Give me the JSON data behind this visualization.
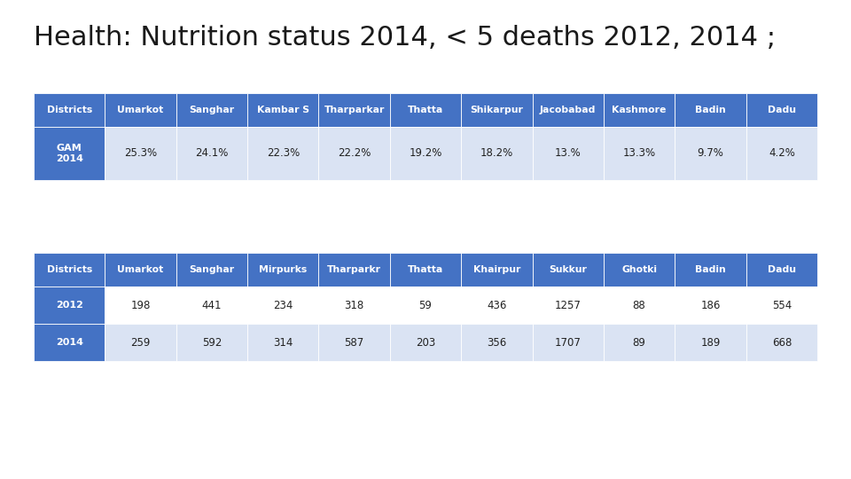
{
  "title": "Health: Nutrition status 2014, < 5 deaths 2012, 2014 ;",
  "title_fontsize": 22,
  "background_color": "#ffffff",
  "header_color": "#4472C4",
  "header_text_color": "#ffffff",
  "row_color_light": "#DAE3F3",
  "row_color_white": "#ffffff",
  "border_color": "#4472C4",
  "data_text_color": "#222222",
  "label_cell_color": "#4472C4",
  "label_text_color": "#ffffff",
  "table1_headers": [
    "Districts",
    "Umarkot",
    "Sanghar",
    "Kambar S",
    "Tharparkar",
    "Thatta",
    "Shikarpur",
    "Jacobabad",
    "Kashmore",
    "Badin",
    "Dadu"
  ],
  "table1_row_label": "GAM\n2014",
  "table1_data": [
    "25.3%",
    "24.1%",
    "22.3%",
    "22.2%",
    "19.2%",
    "18.2%",
    "13.%",
    "13.3%",
    "9.7%",
    "4.2%"
  ],
  "table2_headers": [
    "Districts",
    "Umarkot",
    "Sanghar",
    "Mirpurks",
    "Tharparkr",
    "Thatta",
    "Khairpur",
    "Sukkur",
    "Ghotki",
    "Badin",
    "Dadu"
  ],
  "table2_row1_label": "2012",
  "table2_row2_label": "2014",
  "table2_row1_data": [
    "198",
    "441",
    "234",
    "318",
    "59",
    "436",
    "1257",
    "88",
    "186",
    "554"
  ],
  "table2_row2_data": [
    "259",
    "592",
    "314",
    "587",
    "203",
    "356",
    "1707",
    "89",
    "189",
    "668"
  ]
}
